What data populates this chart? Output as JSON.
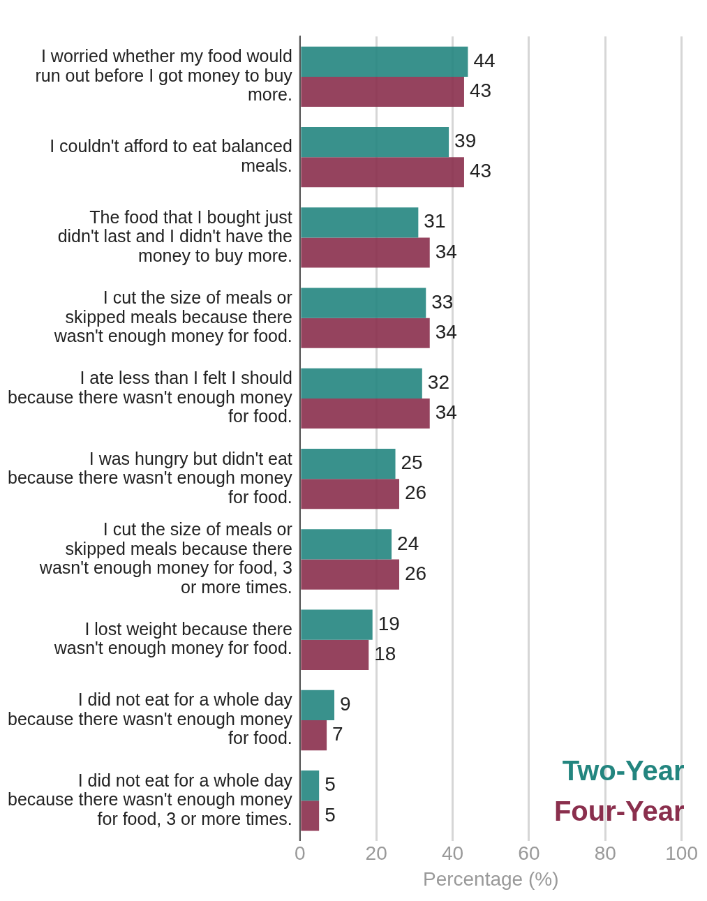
{
  "chart_data": {
    "type": "bar",
    "orientation": "horizontal",
    "xlabel": "Percentage (%)",
    "categories": [
      "I worried whether my food would run out before I got money to buy more.",
      "I couldn't afford to eat balanced meals.",
      "The food that I bought just didn't last and I didn't have the money to buy more.",
      "I cut the size of meals or skipped meals because there wasn't enough money for food.",
      "I ate less than I felt I should because there wasn't enough money for food.",
      "I was hungry but didn't eat because there wasn't enough money for food.",
      "I cut the size of meals or skipped meals because there wasn't enough money for food, 3 or more times.",
      "I lost weight because there wasn't enough money for food.",
      "I did not eat for a whole day because there wasn't enough money for food.",
      "I did not eat for a whole day because there wasn't enough money for food, 3 or more times."
    ],
    "series": [
      {
        "name": "Two-Year",
        "color": "#23857f",
        "values": [
          44,
          39,
          31,
          33,
          32,
          25,
          24,
          19,
          9,
          5
        ]
      },
      {
        "name": "Four-Year",
        "color": "#8a2f4d",
        "values": [
          43,
          43,
          34,
          34,
          34,
          26,
          26,
          18,
          7,
          5
        ]
      }
    ],
    "xlim": [
      0,
      100
    ],
    "xticks": [
      0,
      20,
      40,
      60,
      80,
      100
    ],
    "grid": "x",
    "legend": "bottom right",
    "data_labels": true
  }
}
